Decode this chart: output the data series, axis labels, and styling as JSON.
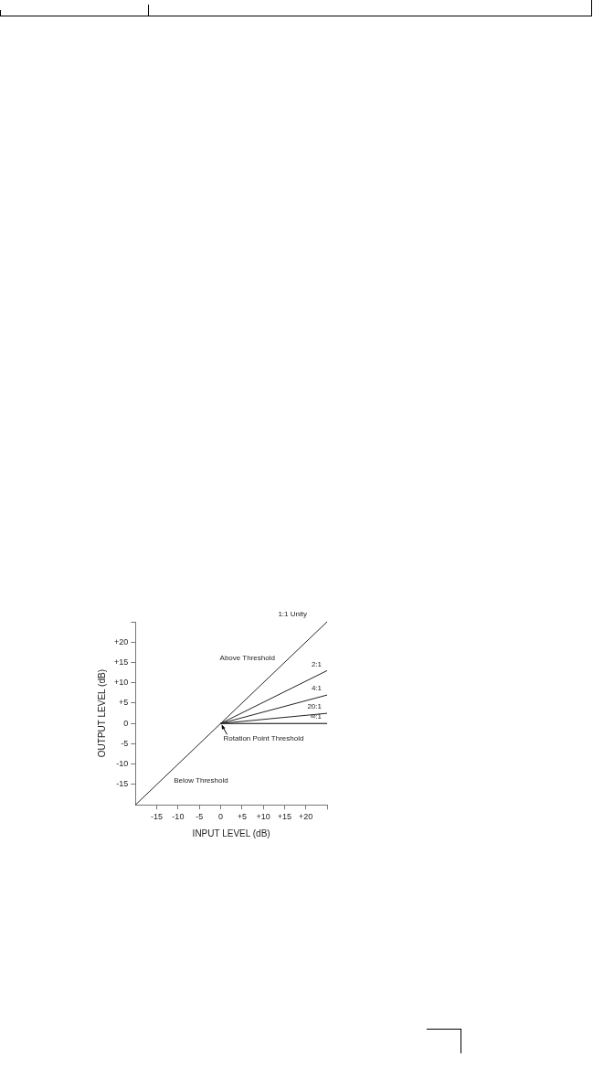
{
  "chart_data": {
    "type": "line",
    "xlabel": "INPUT LEVEL (dB)",
    "ylabel": "OUTPUT LEVEL (dB)",
    "xlim": [
      -20,
      25
    ],
    "ylim": [
      -20,
      25
    ],
    "xticks": [
      -15,
      -10,
      -5,
      0,
      {
        "value": 5,
        "label": "+5"
      },
      {
        "value": 10,
        "label": "+10"
      },
      {
        "value": 15,
        "label": "+15"
      },
      {
        "value": 20,
        "label": "+20"
      },
      {
        "value": 25,
        "label": null
      }
    ],
    "yticks": [
      -15,
      -10,
      -5,
      0,
      {
        "value": 5,
        "label": "+5"
      },
      {
        "value": 10,
        "label": "+10"
      },
      {
        "value": 15,
        "label": "+15"
      },
      {
        "value": 20,
        "label": "+20"
      },
      {
        "value": 25,
        "label": null
      }
    ],
    "grid": false,
    "legend": false,
    "marker": "none",
    "line_style": "solid",
    "series": [
      {
        "name": "1:1 Unity",
        "color": "#222222",
        "x": [
          -20,
          25
        ],
        "values": [
          -20,
          25
        ]
      },
      {
        "name": "2:1",
        "color": "#222222",
        "x": [
          0,
          25
        ],
        "values": [
          0,
          13
        ]
      },
      {
        "name": "4:1",
        "color": "#222222",
        "x": [
          0,
          25
        ],
        "values": [
          0,
          7
        ]
      },
      {
        "name": "20:1",
        "color": "#222222",
        "x": [
          0,
          25
        ],
        "values": [
          0,
          2.5
        ]
      },
      {
        "name": "∞:1",
        "color": "#000000",
        "x": [
          0,
          25
        ],
        "values": [
          0,
          0
        ]
      }
    ],
    "annotations": [
      "Above Threshold",
      {
        "text": "Rotation Point Threshold",
        "x": 0,
        "y": 0
      },
      "Below Threshold"
    ]
  }
}
